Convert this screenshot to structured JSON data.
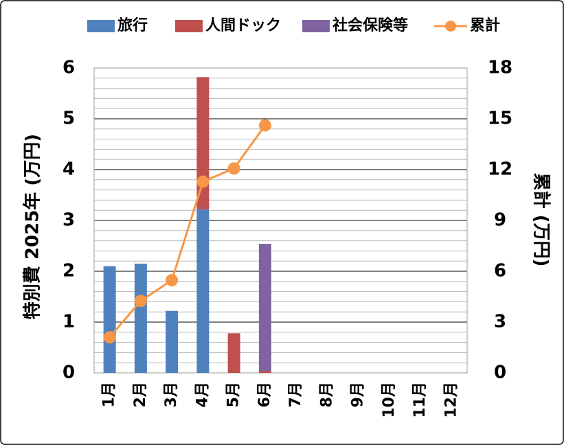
{
  "chart_data": {
    "type": "bar",
    "stacked": true,
    "categories": [
      "1月",
      "2月",
      "3月",
      "4月",
      "5月",
      "6月",
      "7月",
      "8月",
      "9月",
      "10月",
      "11月",
      "12月"
    ],
    "series": [
      {
        "name": "旅行",
        "color": "#4f81bd",
        "values": [
          2.1,
          2.15,
          1.22,
          3.22,
          null,
          null,
          null,
          null,
          null,
          null,
          null,
          null
        ]
      },
      {
        "name": "人間ドック",
        "color": "#c0504d",
        "values": [
          null,
          null,
          null,
          2.6,
          0.78,
          0.04,
          null,
          null,
          null,
          null,
          null,
          null
        ]
      },
      {
        "name": "社会保険等",
        "color": "#8064a2",
        "values": [
          null,
          null,
          null,
          null,
          null,
          2.5,
          null,
          null,
          null,
          null,
          null,
          null
        ]
      },
      {
        "name": "累計",
        "type": "line",
        "axis": "y2",
        "color": "#f79646",
        "values": [
          2.1,
          4.25,
          5.47,
          11.29,
          12.07,
          14.61,
          null,
          null,
          null,
          null,
          null,
          null
        ]
      }
    ],
    "ylabel": "特別費 2025年 (万円)",
    "y2label": "累計 (万円)",
    "ylim": [
      0,
      6
    ],
    "yticks": [
      0,
      1,
      2,
      3,
      4,
      5,
      6
    ],
    "y2lim": [
      0,
      18
    ],
    "y2ticks": [
      0,
      3,
      6,
      9,
      12,
      15,
      18
    ],
    "grid": true,
    "minor_grid_step": 0.2,
    "legend": "top"
  }
}
